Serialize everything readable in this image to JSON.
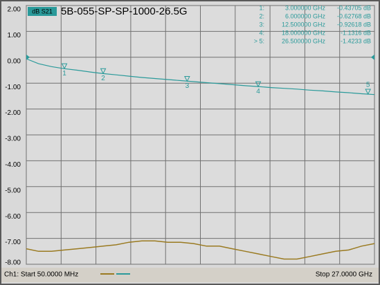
{
  "chart_data": {
    "type": "line",
    "channel_label": "dB S21",
    "title": "5B-055-SP-SP-1000-26.5G",
    "footer_left": "Ch1: Start 50.0000 MHz",
    "footer_right": "Stop 27.0000 GHz",
    "xlim": [
      0.05,
      27
    ],
    "xticks": [
      0.05,
      2.745,
      5.44,
      8.135,
      10.83,
      13.525,
      16.22,
      18.915,
      21.61,
      24.305,
      27
    ],
    "ylim": [
      -8,
      2
    ],
    "yticks": [
      {
        "value": 2,
        "label": "2.00"
      },
      {
        "value": 1,
        "label": "1.00"
      },
      {
        "value": 0,
        "label": "0.00"
      },
      {
        "value": -1,
        "label": "-1.00"
      },
      {
        "value": -2,
        "label": "-2.00"
      },
      {
        "value": -3,
        "label": "-3.00"
      },
      {
        "value": -4,
        "label": "-4.00"
      },
      {
        "value": -5,
        "label": "-5.00"
      },
      {
        "value": -6,
        "label": "-6.00"
      },
      {
        "value": -7,
        "label": "-7.00"
      },
      {
        "value": -8,
        "label": "-8.00"
      }
    ],
    "grid": true,
    "x": [
      0.05,
      1,
      2,
      3,
      4,
      5,
      6,
      7,
      8,
      9,
      10,
      11,
      12,
      13,
      14,
      15,
      16,
      17,
      18,
      19,
      20,
      21,
      22,
      23,
      24,
      25,
      26,
      27
    ],
    "series": [
      {
        "color": "#2a9a9a",
        "values": [
          -0.06,
          -0.25,
          -0.36,
          -0.44,
          -0.5,
          -0.57,
          -0.63,
          -0.68,
          -0.73,
          -0.78,
          -0.82,
          -0.86,
          -0.9,
          -0.94,
          -0.98,
          -1.02,
          -1.06,
          -1.1,
          -1.13,
          -1.17,
          -1.2,
          -1.23,
          -1.27,
          -1.3,
          -1.34,
          -1.37,
          -1.41,
          -1.44
        ]
      },
      {
        "color": "#9a7a20",
        "values": [
          -7.4,
          -7.5,
          -7.5,
          -7.45,
          -7.4,
          -7.35,
          -7.3,
          -7.25,
          -7.15,
          -7.1,
          -7.1,
          -7.15,
          -7.15,
          -7.2,
          -7.3,
          -7.3,
          -7.4,
          -7.5,
          -7.6,
          -7.7,
          -7.8,
          -7.8,
          -7.7,
          -7.6,
          -7.5,
          -7.45,
          -7.3,
          -7.2
        ]
      }
    ],
    "markers": [
      {
        "label": "1:",
        "tag": "1",
        "x": 3,
        "x_label": "3.000000 GHz",
        "value": -0.43705,
        "value_label": "-0.43705 dB"
      },
      {
        "label": "2:",
        "tag": "2",
        "x": 6,
        "x_label": "6.000000 GHz",
        "value": -0.62768,
        "value_label": "-0.62768 dB"
      },
      {
        "label": "3:",
        "tag": "3",
        "x": 12.5,
        "x_label": "12.500000 GHz",
        "value": -0.92618,
        "value_label": "-0.92618 dB"
      },
      {
        "label": "4:",
        "tag": "4",
        "x": 18,
        "x_label": "18.000000 GHz",
        "value": -1.1316,
        "value_label": "-1.1316 dB"
      },
      {
        "label": "> 5:",
        "tag": "5",
        "x": 26.5,
        "x_label": "26.500000 GHz",
        "value": -1.4233,
        "value_label": "-1.4233 dB"
      }
    ]
  }
}
